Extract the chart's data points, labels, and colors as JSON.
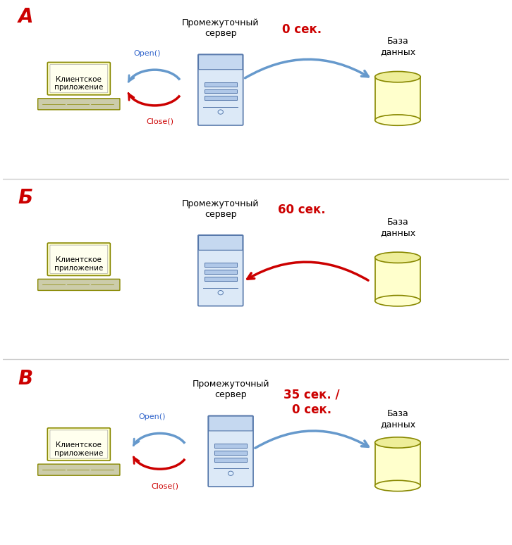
{
  "title": "",
  "background_color": "#ffffff",
  "panel_divider_color": "#cccccc",
  "label_A": "А",
  "label_B": "Б",
  "label_V": "В",
  "label_color": "#cc0000",
  "server_label": "Промежуточный\nсервер",
  "client_label": "Клиентское\nприложение",
  "db_label": "База\nданных",
  "time_A": "0 сек.",
  "time_B": "60 сек.",
  "time_V": "35 сек. /\n0 сек.",
  "open_label": "Open()",
  "close_label": "Close()",
  "arrow_blue": "#6699cc",
  "arrow_red": "#cc0000",
  "laptop_fill": "#ffffcc",
  "laptop_border": "#999900",
  "server_fill_top": "#c5d8f0",
  "server_fill_body": "#dce9f7",
  "server_border": "#5577aa",
  "db_fill": "#ffffcc",
  "db_border": "#888800"
}
